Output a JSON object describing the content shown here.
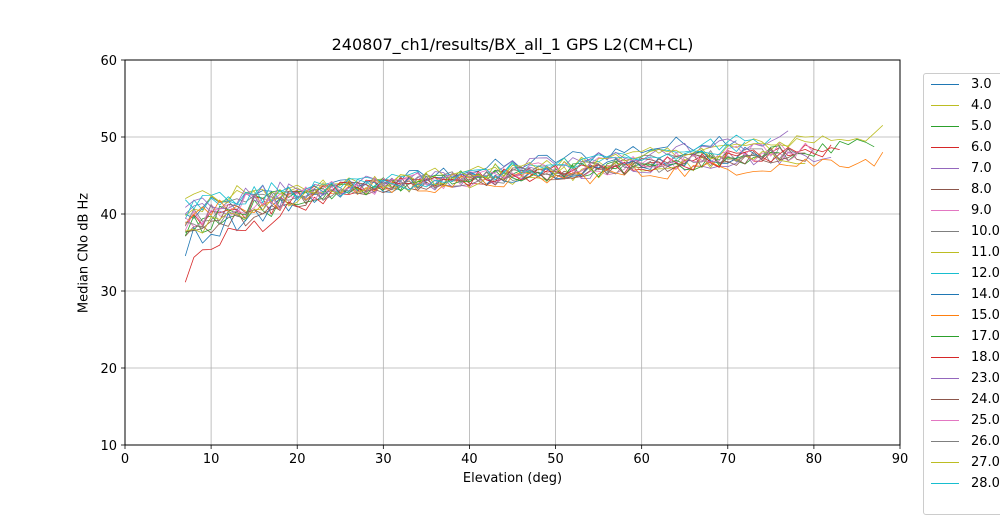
{
  "chart_data": {
    "type": "line",
    "title": "240807_ch1/results/BX_all_1 GPS L2(CM+CL)",
    "xlabel": "Elevation (deg)",
    "ylabel": "Median CNo dB Hz",
    "xlim": [
      0,
      90
    ],
    "ylim": [
      10,
      60
    ],
    "xticks": [
      "0",
      "10",
      "20",
      "30",
      "40",
      "50",
      "60",
      "70",
      "80",
      "90"
    ],
    "yticks": [
      "10",
      "20",
      "30",
      "40",
      "50",
      "60"
    ],
    "grid": true,
    "legend_position": "right",
    "series": [
      {
        "name": "3.0",
        "color": "#1f77b4",
        "x_end": 71,
        "y_start": 39.5,
        "y_end": 50.0
      },
      {
        "name": "4.0",
        "color": "#bcbd22",
        "x_end": 88,
        "y_start": 40.5,
        "y_end": 50.5
      },
      {
        "name": "5.0",
        "color": "#2ca02c",
        "x_end": 87,
        "y_start": 37.0,
        "y_end": 48.8
      },
      {
        "name": "6.0",
        "color": "#d62728",
        "x_end": 83,
        "y_start": 38.0,
        "y_end": 48.3
      },
      {
        "name": "7.0",
        "color": "#9467bd",
        "x_end": 82,
        "y_start": 40.0,
        "y_end": 48.0
      },
      {
        "name": "8.0",
        "color": "#8c564b",
        "x_end": 80,
        "y_start": 36.5,
        "y_end": 48.0
      },
      {
        "name": "9.0",
        "color": "#e377c2",
        "x_end": 78,
        "y_start": 38.5,
        "y_end": 48.0
      },
      {
        "name": "10.0",
        "color": "#7f7f7f",
        "x_end": 77,
        "y_start": 39.0,
        "y_end": 47.8
      },
      {
        "name": "11.0",
        "color": "#bcbd22",
        "x_end": 79,
        "y_start": 41.5,
        "y_end": 47.5
      },
      {
        "name": "12.0",
        "color": "#17becf",
        "x_end": 75,
        "y_start": 40.5,
        "y_end": 49.8
      },
      {
        "name": "14.0",
        "color": "#1f77b4",
        "x_end": 74,
        "y_start": 36.0,
        "y_end": 48.0
      },
      {
        "name": "15.0",
        "color": "#ff7f0e",
        "x_end": 88,
        "y_start": 39.0,
        "y_end": 47.2
      },
      {
        "name": "17.0",
        "color": "#2ca02c",
        "x_end": 76,
        "y_start": 38.0,
        "y_end": 47.6
      },
      {
        "name": "18.0",
        "color": "#d62728",
        "x_end": 82,
        "y_start": 32.5,
        "y_end": 48.2
      },
      {
        "name": "23.0",
        "color": "#9467bd",
        "x_end": 77,
        "y_start": 41.0,
        "y_end": 49.8
      },
      {
        "name": "24.0",
        "color": "#8c564b",
        "x_end": 79,
        "y_start": 37.5,
        "y_end": 48.0
      },
      {
        "name": "25.0",
        "color": "#e377c2",
        "x_end": 80,
        "y_start": 39.0,
        "y_end": 49.0
      },
      {
        "name": "26.0",
        "color": "#7f7f7f",
        "x_end": 78,
        "y_start": 38.5,
        "y_end": 48.2
      },
      {
        "name": "27.0",
        "color": "#bcbd22",
        "x_end": 80,
        "y_start": 37.5,
        "y_end": 49.5
      },
      {
        "name": "28.0",
        "color": "#17becf",
        "x_end": 72,
        "y_start": 41.0,
        "y_end": 48.5
      }
    ]
  }
}
